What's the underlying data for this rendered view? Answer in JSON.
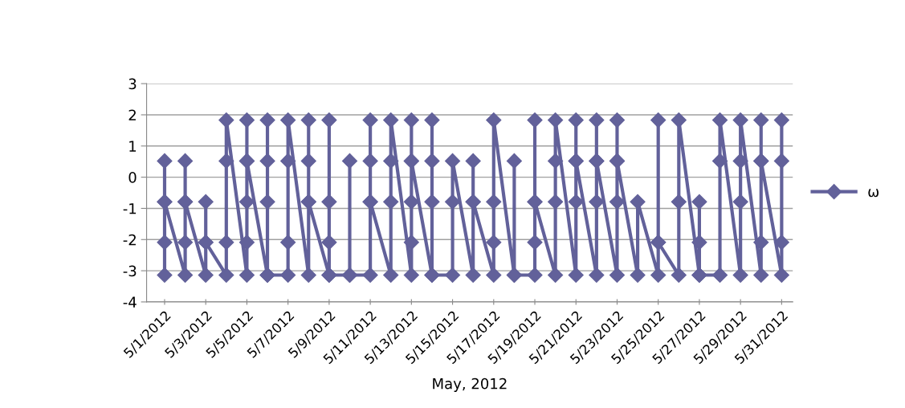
{
  "chart_data": {
    "type": "line",
    "xlabel": "May, 2012",
    "x": [
      "2012-05-01",
      "2012-05-01",
      "2012-05-01",
      "2012-05-01",
      "2012-05-01",
      "2012-05-02",
      "2012-05-02",
      "2012-05-02",
      "2012-05-02",
      "2012-05-02",
      "2012-05-03",
      "2012-05-03",
      "2012-05-03",
      "2012-05-03",
      "2012-05-04",
      "2012-05-04",
      "2012-05-04",
      "2012-05-04",
      "2012-05-05",
      "2012-05-05",
      "2012-05-05",
      "2012-05-05",
      "2012-05-05",
      "2012-05-05",
      "2012-05-06",
      "2012-05-06",
      "2012-05-06",
      "2012-05-06",
      "2012-05-06",
      "2012-05-07",
      "2012-05-07",
      "2012-05-07",
      "2012-05-07",
      "2012-05-08",
      "2012-05-08",
      "2012-05-08",
      "2012-05-08",
      "2012-05-08",
      "2012-05-09",
      "2012-05-09",
      "2012-05-09",
      "2012-05-09",
      "2012-05-09",
      "2012-05-10",
      "2012-05-10",
      "2012-05-10",
      "2012-05-11",
      "2012-05-11",
      "2012-05-11",
      "2012-05-11",
      "2012-05-11",
      "2012-05-12",
      "2012-05-12",
      "2012-05-12",
      "2012-05-12",
      "2012-05-13",
      "2012-05-13",
      "2012-05-13",
      "2012-05-13",
      "2012-05-13",
      "2012-05-13",
      "2012-05-14",
      "2012-05-14",
      "2012-05-14",
      "2012-05-14",
      "2012-05-14",
      "2012-05-15",
      "2012-05-15",
      "2012-05-15",
      "2012-05-16",
      "2012-05-16",
      "2012-05-16",
      "2012-05-16",
      "2012-05-17",
      "2012-05-17",
      "2012-05-17",
      "2012-05-17",
      "2012-05-18",
      "2012-05-18",
      "2012-05-18",
      "2012-05-19",
      "2012-05-19",
      "2012-05-19",
      "2012-05-19",
      "2012-05-19",
      "2012-05-20",
      "2012-05-20",
      "2012-05-20",
      "2012-05-20",
      "2012-05-21",
      "2012-05-21",
      "2012-05-21",
      "2012-05-21",
      "2012-05-21",
      "2012-05-22",
      "2012-05-22",
      "2012-05-22",
      "2012-05-22",
      "2012-05-22",
      "2012-05-23",
      "2012-05-23",
      "2012-05-23",
      "2012-05-23",
      "2012-05-23",
      "2012-05-24",
      "2012-05-24",
      "2012-05-25",
      "2012-05-25",
      "2012-05-25",
      "2012-05-25",
      "2012-05-26",
      "2012-05-26",
      "2012-05-26",
      "2012-05-27",
      "2012-05-27",
      "2012-05-27",
      "2012-05-27",
      "2012-05-28",
      "2012-05-28",
      "2012-05-28",
      "2012-05-29",
      "2012-05-29",
      "2012-05-29",
      "2012-05-29",
      "2012-05-30",
      "2012-05-30",
      "2012-05-30",
      "2012-05-30",
      "2012-05-30",
      "2012-05-31",
      "2012-05-31",
      "2012-05-31",
      "2012-05-31"
    ],
    "series": [
      {
        "name": "ω",
        "color": "#62619a",
        "values": [
          -3.14,
          -2.09,
          -0.79,
          0.52,
          -0.79,
          -3.14,
          -2.09,
          -0.79,
          0.52,
          -0.79,
          -3.14,
          -2.09,
          -0.79,
          -2.09,
          -3.14,
          -2.09,
          0.52,
          1.83,
          -3.14,
          -2.09,
          -0.79,
          0.52,
          1.83,
          0.52,
          -3.14,
          -0.79,
          0.52,
          1.83,
          -3.14,
          -3.14,
          -2.09,
          0.52,
          1.83,
          -3.14,
          -0.79,
          0.52,
          1.83,
          -0.79,
          -3.14,
          -2.09,
          -0.79,
          1.83,
          -3.14,
          -3.14,
          0.52,
          -3.14,
          -3.14,
          -0.79,
          0.52,
          1.83,
          -0.79,
          -3.14,
          -0.79,
          0.52,
          1.83,
          -3.14,
          -2.09,
          -0.79,
          0.52,
          1.83,
          0.52,
          -3.14,
          -0.79,
          0.52,
          1.83,
          -3.14,
          -3.14,
          -0.79,
          0.52,
          -3.14,
          -0.79,
          0.52,
          -0.79,
          -3.14,
          -2.09,
          -0.79,
          1.83,
          -3.14,
          0.52,
          -3.14,
          -3.14,
          -2.09,
          -0.79,
          1.83,
          -0.79,
          -3.14,
          -0.79,
          0.52,
          1.83,
          -3.14,
          -0.79,
          0.52,
          1.83,
          0.52,
          -3.14,
          -0.79,
          0.52,
          1.83,
          0.52,
          -3.14,
          -0.79,
          0.52,
          1.83,
          0.52,
          -3.14,
          -0.79,
          -3.14,
          -2.09,
          1.83,
          -2.09,
          -3.14,
          -0.79,
          1.83,
          -3.14,
          -2.09,
          -0.79,
          -3.14,
          -3.14,
          0.52,
          1.83,
          -3.14,
          -0.79,
          0.52,
          1.83,
          -3.14,
          -2.09,
          0.52,
          1.83,
          0.52,
          -3.14,
          -2.09,
          0.52,
          1.83
        ]
      }
    ],
    "xlim": [
      "2012-04-30T03:00",
      "2012-05-31T13:00"
    ],
    "xticks": [
      {
        "value": "2012-05-01",
        "label": "5/1/2012"
      },
      {
        "value": "2012-05-03",
        "label": "5/3/2012"
      },
      {
        "value": "2012-05-05",
        "label": "5/5/2012"
      },
      {
        "value": "2012-05-07",
        "label": "5/7/2012"
      },
      {
        "value": "2012-05-09",
        "label": "5/9/2012"
      },
      {
        "value": "2012-05-11",
        "label": "5/11/2012"
      },
      {
        "value": "2012-05-13",
        "label": "5/13/2012"
      },
      {
        "value": "2012-05-15",
        "label": "5/15/2012"
      },
      {
        "value": "2012-05-17",
        "label": "5/17/2012"
      },
      {
        "value": "2012-05-19",
        "label": "5/19/2012"
      },
      {
        "value": "2012-05-21",
        "label": "5/21/2012"
      },
      {
        "value": "2012-05-23",
        "label": "5/23/2012"
      },
      {
        "value": "2012-05-25",
        "label": "5/25/2012"
      },
      {
        "value": "2012-05-27",
        "label": "5/27/2012"
      },
      {
        "value": "2012-05-29",
        "label": "5/29/2012"
      },
      {
        "value": "2012-05-31",
        "label": "5/31/2012"
      }
    ],
    "ylim": [
      -4,
      3
    ],
    "yticks": [
      -4,
      -3,
      -2,
      -1,
      0,
      1,
      2,
      3
    ],
    "grid": "y",
    "legend": "right",
    "marker": "diamond",
    "line_style": "solid"
  }
}
